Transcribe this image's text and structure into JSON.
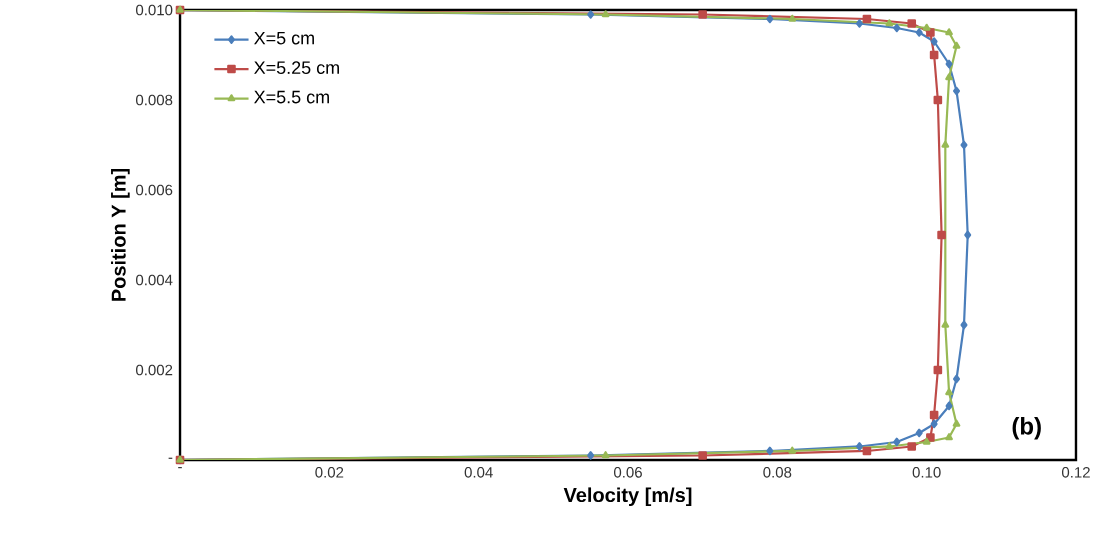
{
  "chart_data": {
    "type": "line",
    "xlabel": "Velocity [m/s]",
    "ylabel": "Position Y [m]",
    "xlim": [
      0,
      0.12
    ],
    "ylim": [
      0,
      0.01
    ],
    "xticks": [
      {
        "value": 0,
        "label": "-"
      },
      0.02,
      0.04,
      0.06,
      0.08,
      "0.10",
      0.12
    ],
    "yticks": [
      {
        "value": 0,
        "label": "-"
      },
      0.002,
      0.004,
      0.006,
      0.008,
      {
        "value": 0.01,
        "label": "0.010"
      }
    ],
    "legend": "top left",
    "grid": false,
    "annotations": [
      "(b)"
    ],
    "series": [
      {
        "name": "X=5 cm",
        "color": "#4a7ebb",
        "marker": "diamond",
        "x": [
          0,
          0.055,
          0.079,
          0.091,
          0.096,
          0.099,
          0.101,
          0.103,
          0.104,
          0.105,
          0.1055,
          0.105,
          0.104,
          0.103,
          0.101,
          0.099,
          0.096,
          0.091,
          0.079,
          0.055,
          0
        ],
        "values": [
          0,
          0.0001,
          0.0002,
          0.0003,
          0.0004,
          0.0006,
          0.0008,
          0.0012,
          0.0018,
          0.003,
          0.005,
          0.007,
          0.0082,
          0.0088,
          0.0093,
          0.0095,
          0.0096,
          0.0097,
          0.0098,
          0.0099,
          0.01
        ]
      },
      {
        "name": "X=5.25 cm",
        "color": "#be4b48",
        "marker": "square",
        "x": [
          0,
          0.07,
          0.092,
          0.098,
          0.1005,
          0.101,
          0.1015,
          0.102,
          0.1015,
          0.101,
          0.1005,
          0.098,
          0.092,
          0.07,
          0
        ],
        "values": [
          0,
          0.0001,
          0.0002,
          0.0003,
          0.0005,
          0.001,
          0.002,
          0.005,
          0.008,
          0.009,
          0.0095,
          0.0097,
          0.0098,
          0.0099,
          0.01
        ]
      },
      {
        "name": "X=5.5 cm",
        "color": "#98b954",
        "marker": "triangle",
        "x": [
          0,
          0.057,
          0.082,
          0.095,
          0.1,
          0.103,
          0.104,
          0.103,
          0.1025,
          0.1025,
          0.103,
          0.104,
          0.103,
          0.1,
          0.095,
          0.082,
          0.057,
          0
        ],
        "values": [
          0,
          0.0001,
          0.0002,
          0.0003,
          0.0004,
          0.0005,
          0.0008,
          0.0015,
          0.003,
          0.007,
          0.0085,
          0.0092,
          0.0095,
          0.0096,
          0.0097,
          0.0098,
          0.0099,
          0.01
        ]
      }
    ]
  }
}
